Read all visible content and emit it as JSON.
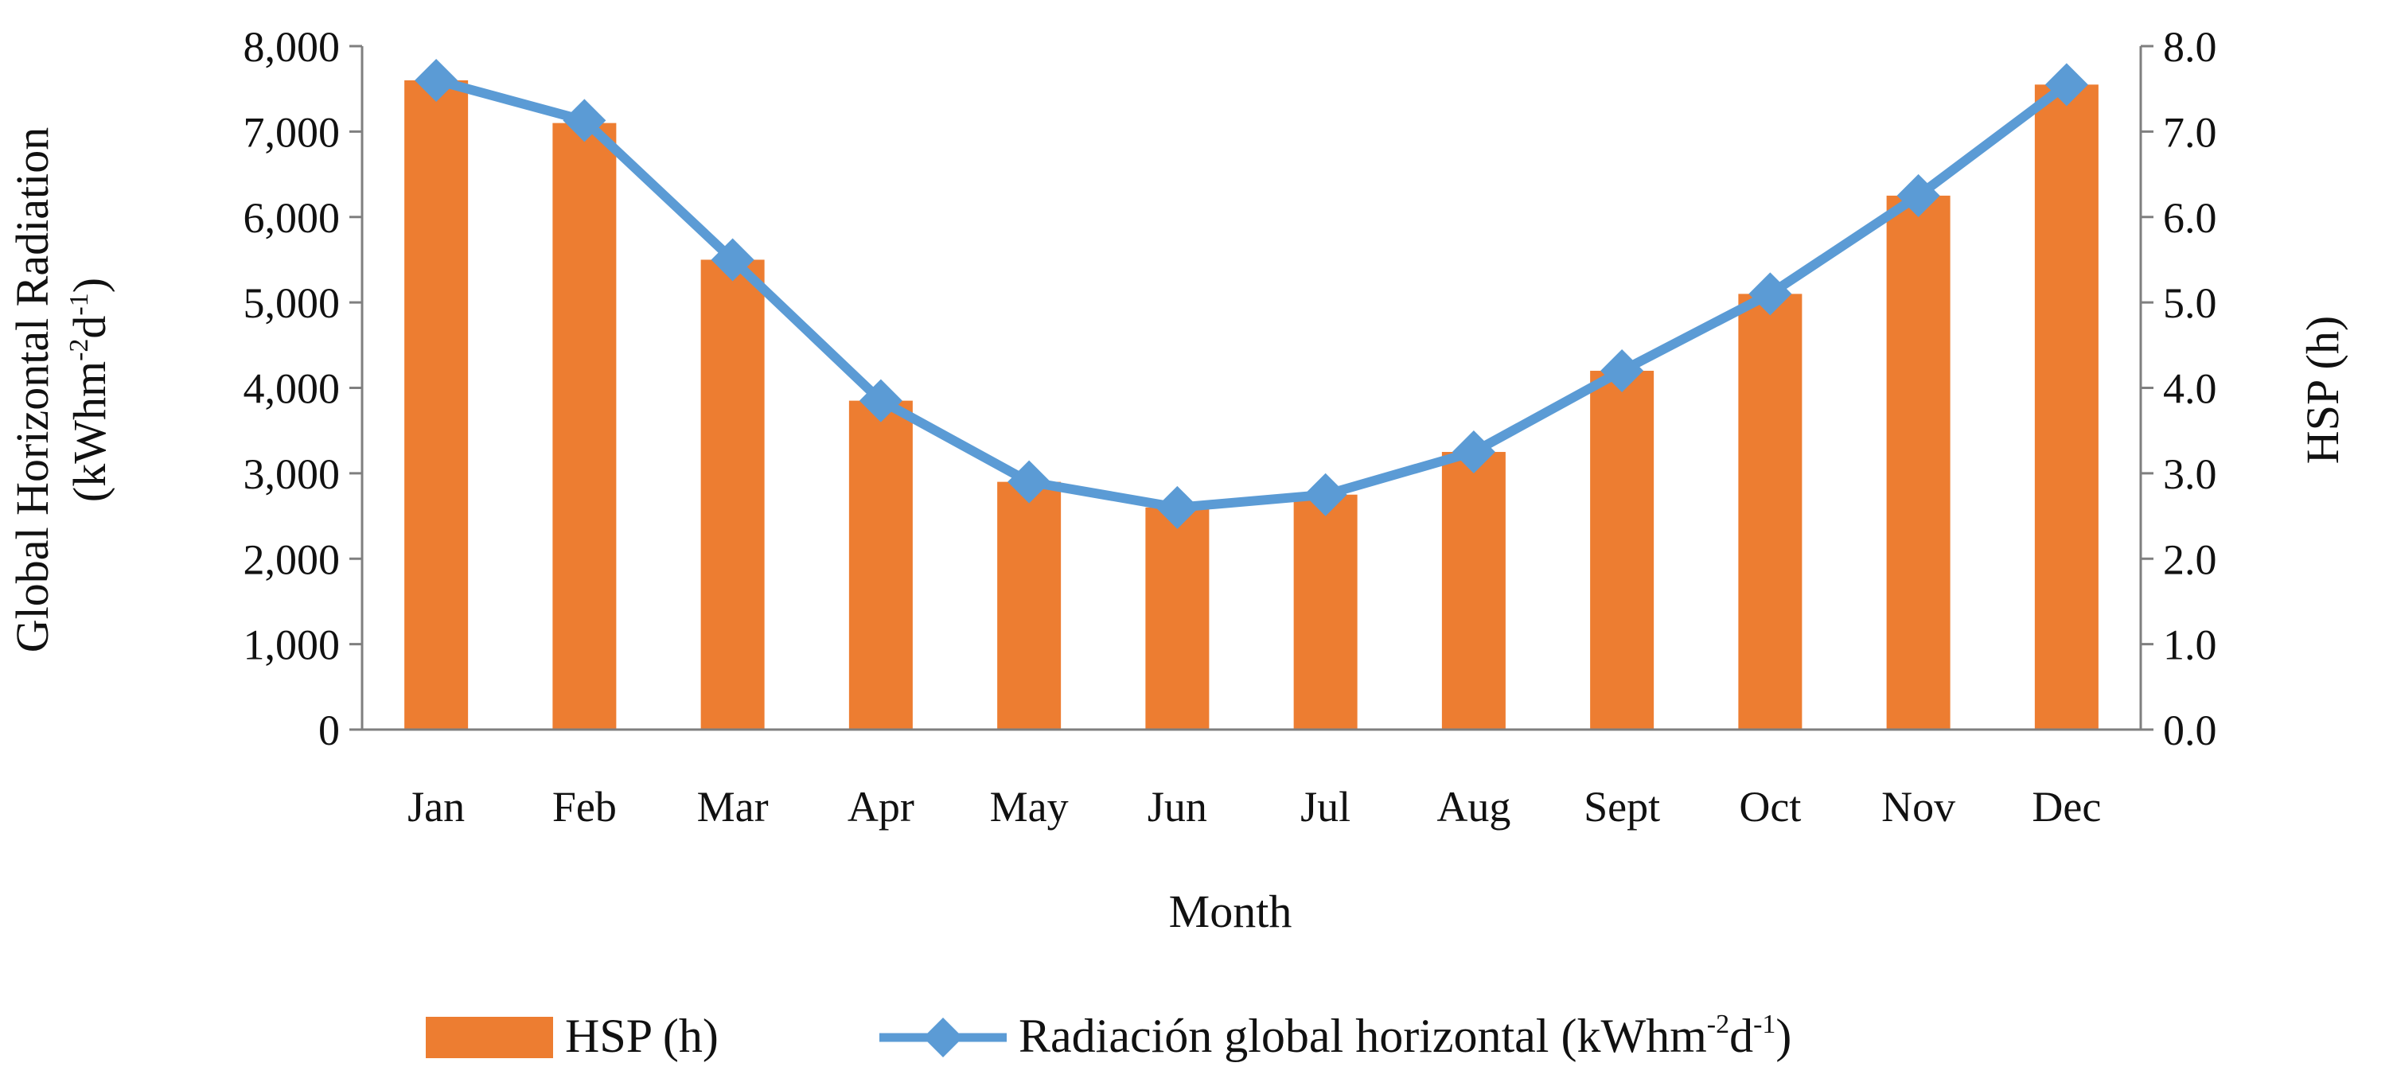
{
  "chart_data": {
    "type": "bar+line",
    "title": "",
    "xlabel": "Month",
    "ylabel_left": "Global Horizontal Radiation",
    "ylabel_left_unit": {
      "prefix": "(kWhm",
      "sup1": "-2",
      "mid": "d",
      "sup2": "-1",
      "suffix": ")"
    },
    "ylabel_right": "HSP (h)",
    "categories": [
      "Jan",
      "Feb",
      "Mar",
      "Apr",
      "May",
      "Jun",
      "Jul",
      "Aug",
      "Sept",
      "Oct",
      "Nov",
      "Dec"
    ],
    "left_axis": {
      "min": 0,
      "max": 8000,
      "ticks": [
        "0",
        "1,000",
        "2,000",
        "3,000",
        "4,000",
        "5,000",
        "6,000",
        "7,000",
        "8,000"
      ]
    },
    "right_axis": {
      "min": 0,
      "max": 8,
      "ticks": [
        "0.0",
        "1.0",
        "2.0",
        "3.0",
        "4.0",
        "5.0",
        "6.0",
        "7.0",
        "8.0"
      ]
    },
    "series": [
      {
        "name": "HSP (h)",
        "type": "bar",
        "axis": "right",
        "color": "#ED7D31",
        "values": [
          7.6,
          7.1,
          5.5,
          3.85,
          2.9,
          2.6,
          2.75,
          3.25,
          4.2,
          5.1,
          6.25,
          7.55
        ]
      },
      {
        "name": "Radiación global horizontal",
        "type": "line",
        "marker": "diamond",
        "axis": "left",
        "color": "#5B9BD5",
        "values": [
          7600,
          7130,
          5500,
          3850,
          2900,
          2600,
          2750,
          3250,
          4200,
          5100,
          6250,
          7550
        ]
      }
    ],
    "legend": {
      "placement": "bottom",
      "bar_label": "HSP (h)",
      "line_label": {
        "prefix": "Radiación global horizontal (kWhm",
        "sup1": "-2",
        "mid": "d",
        "sup2": "-1",
        "suffix": ")"
      }
    },
    "grid": false
  }
}
